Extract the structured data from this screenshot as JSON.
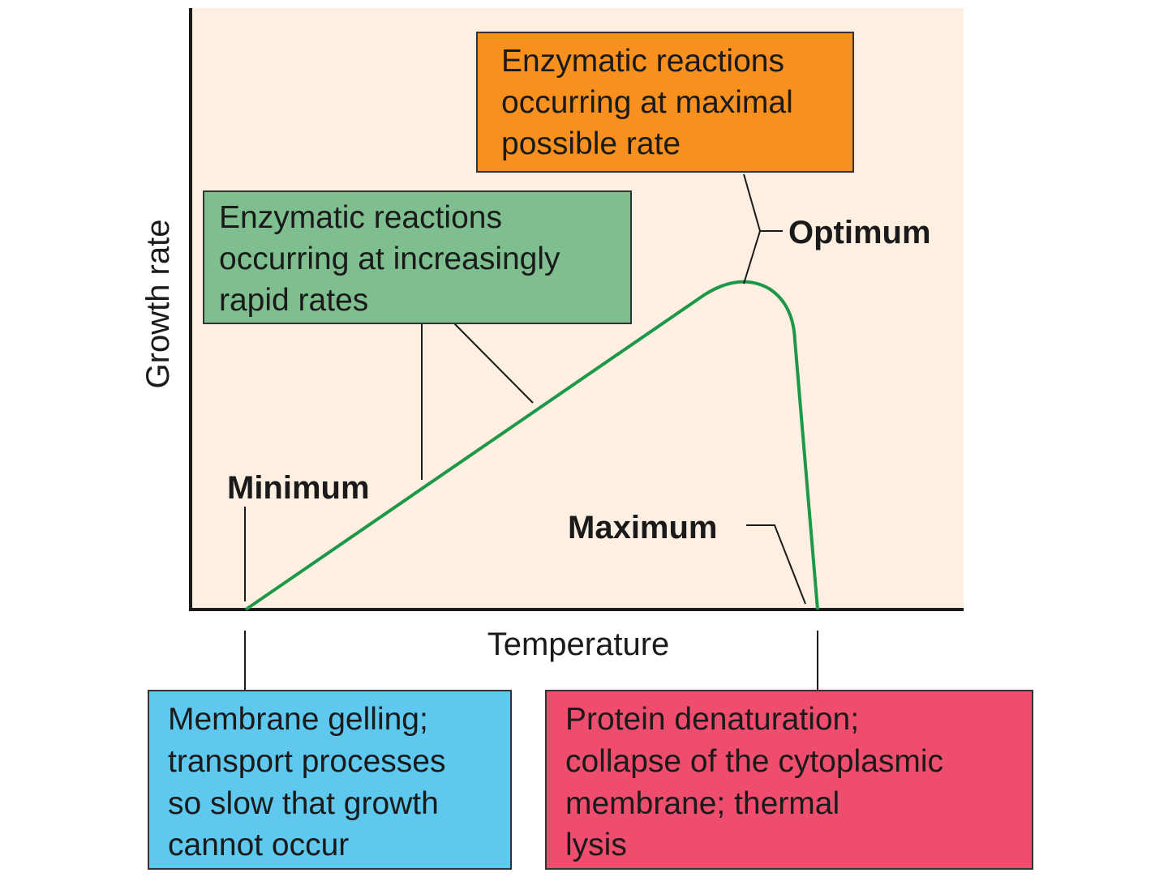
{
  "axes": {
    "y_label": "Growth rate",
    "x_label": "Temperature"
  },
  "points": {
    "minimum": "Minimum",
    "optimum": "Optimum",
    "maximum": "Maximum"
  },
  "boxes": {
    "optimum_box": {
      "lines": [
        "Enzymatic reactions",
        "occurring at maximal",
        "possible rate"
      ],
      "color": "#f7901e"
    },
    "rising_box": {
      "lines": [
        "Enzymatic reactions",
        "occurring at increasingly",
        "rapid rates"
      ],
      "color": "#7fbf8f"
    },
    "minimum_box": {
      "lines": [
        "Membrane gelling;",
        "transport processes",
        "so slow that growth",
        "cannot occur"
      ],
      "color": "#5fc8ee"
    },
    "maximum_box": {
      "lines": [
        "Protein denaturation;",
        "collapse of the cytoplasmic",
        "membrane; thermal",
        "lysis"
      ],
      "color": "#ef4d6e"
    }
  },
  "colors": {
    "plot_background": "#fdefe2",
    "curve": "#1e9848"
  }
}
